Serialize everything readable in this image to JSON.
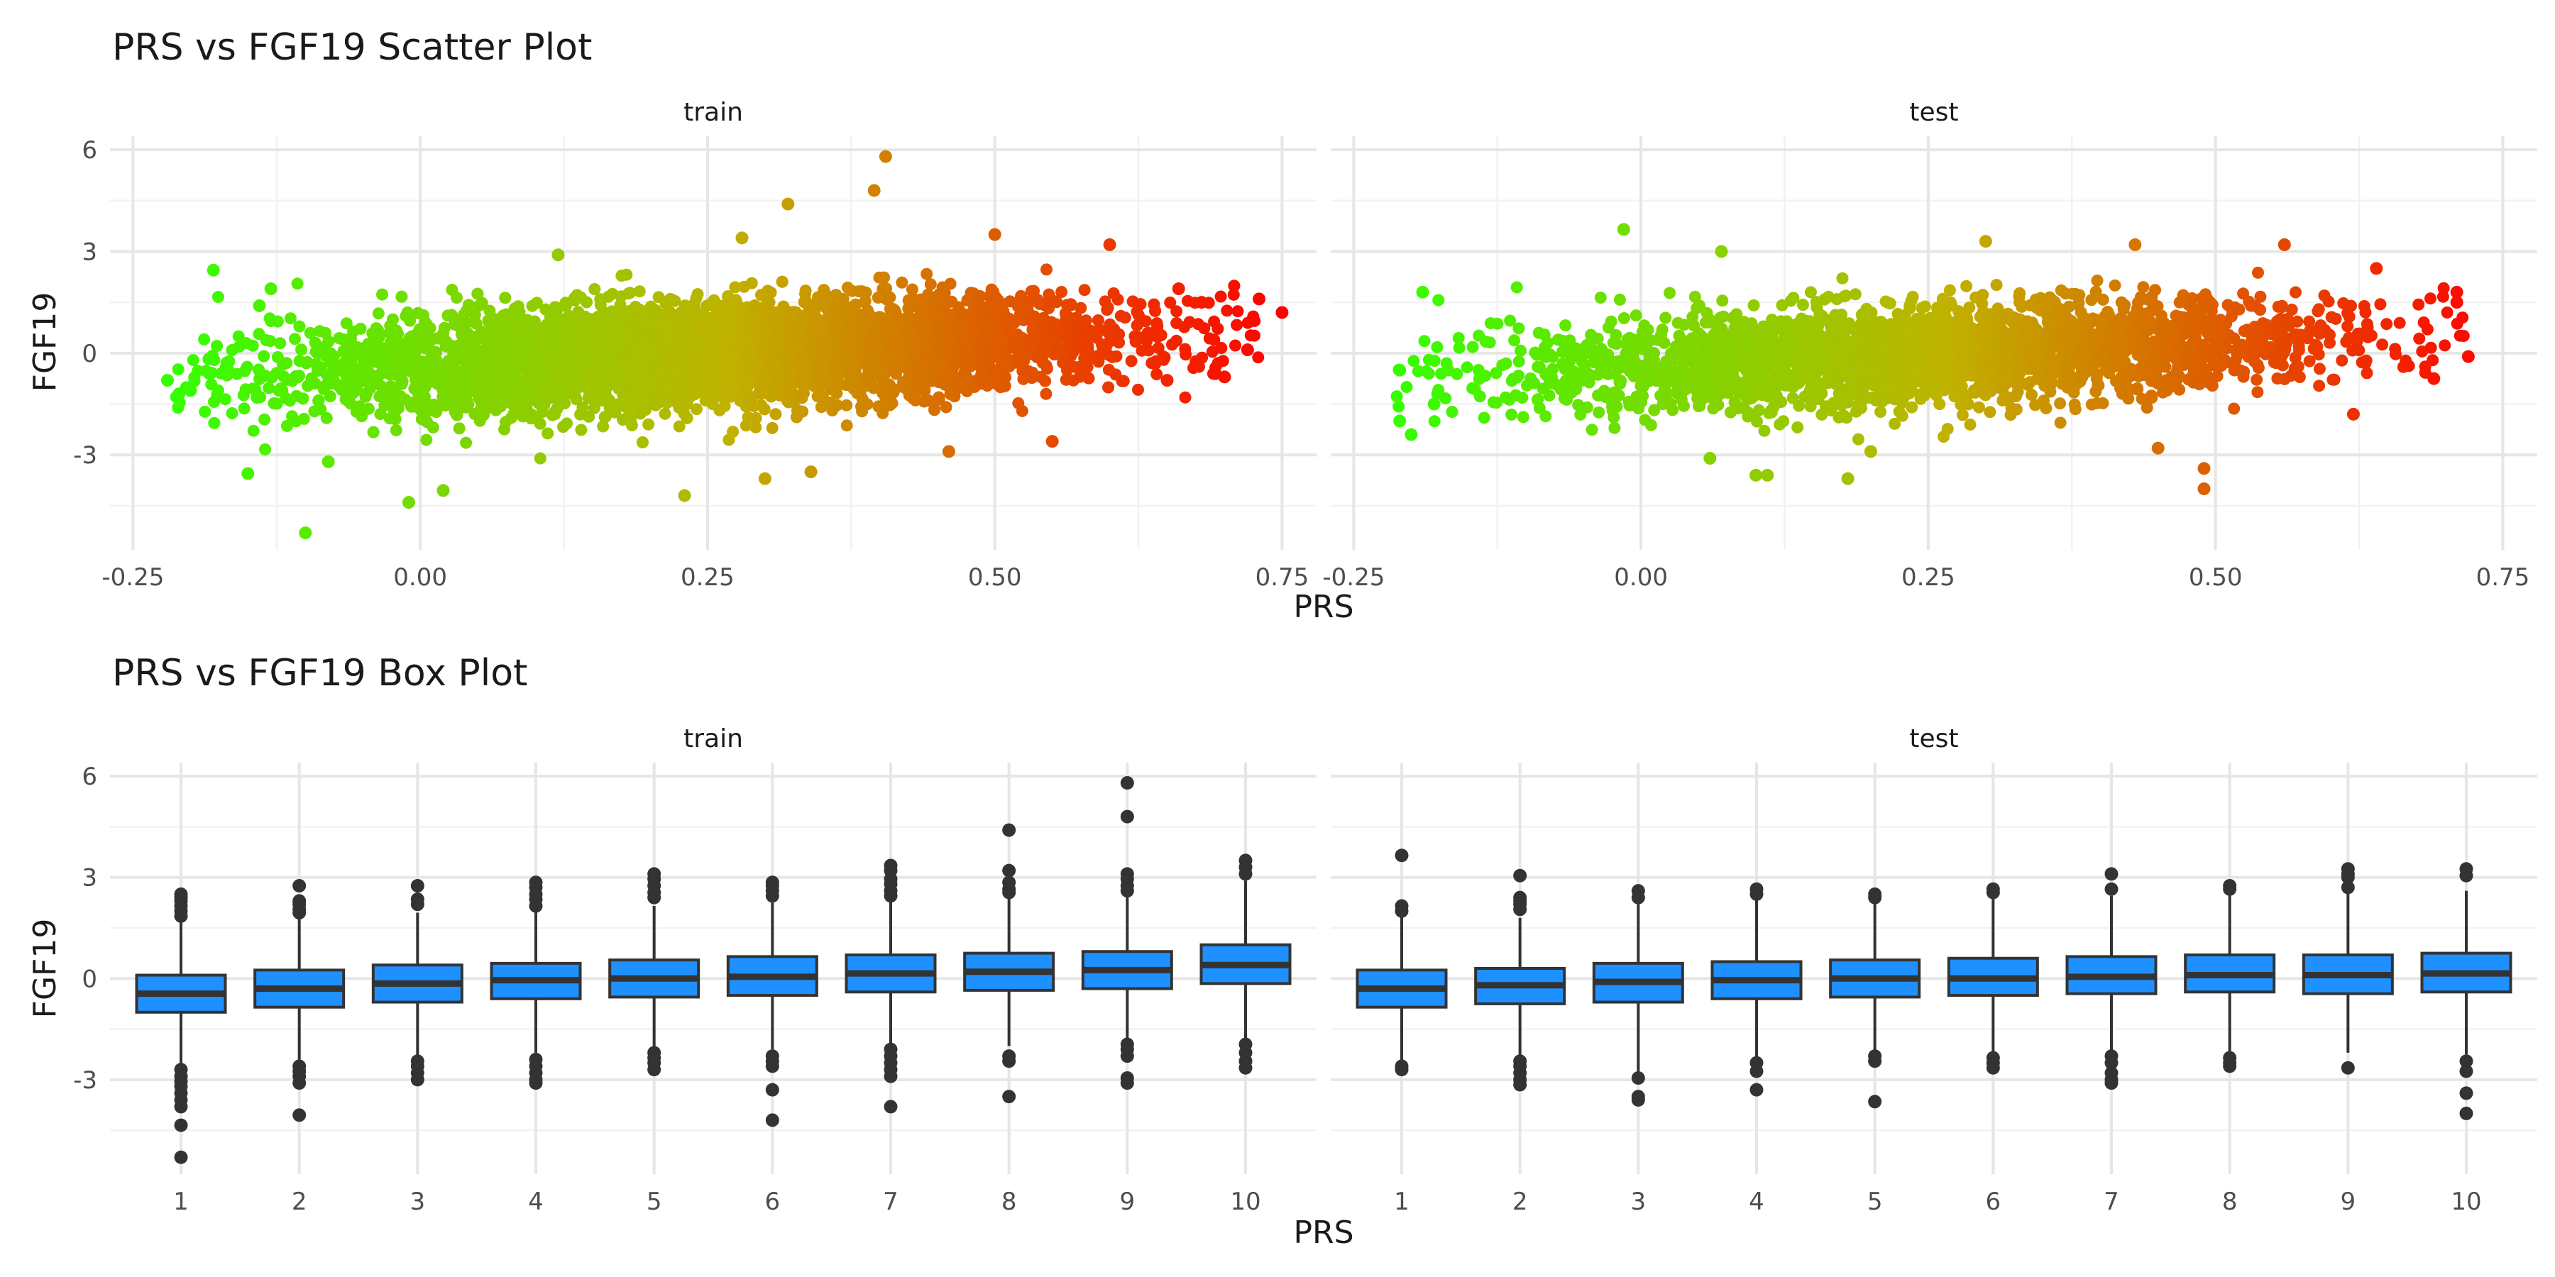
{
  "colors": {
    "low": "#33ff00",
    "mid": "#bfb300",
    "high": "#ff0000",
    "box_fill": "#1e90ff",
    "box_line": "#333333",
    "grid": "#e6e6e6"
  },
  "chart_data": [
    {
      "type": "scatter",
      "title": "PRS vs FGF19 Scatter Plot",
      "xlabel": "PRS",
      "ylabel": "FGF19",
      "facets": [
        "train",
        "test"
      ],
      "xlim": [
        -0.27,
        0.78
      ],
      "ylim": [
        -5.8,
        6.4
      ],
      "xticks": [
        -0.25,
        0.0,
        0.25,
        0.5,
        0.75
      ],
      "xtick_labels": [
        "-0.25",
        "0.00",
        "0.25",
        "0.50",
        "0.75"
      ],
      "yticks": [
        -3,
        0,
        3,
        6
      ],
      "ytick_labels": [
        "-3",
        "0",
        "3",
        "6"
      ],
      "color_by": "x",
      "grid": true,
      "legend": "none",
      "trend": {
        "intercept": -0.45,
        "slope": 1.6
      },
      "cloud": {
        "train": {
          "x_range": [
            -0.22,
            0.73
          ],
          "n_points": 4500,
          "spread": 0.75
        },
        "test": {
          "x_range": [
            -0.22,
            0.72
          ],
          "n_points": 2600,
          "spread": 0.72
        }
      },
      "series": [
        {
          "name": "train",
          "points": [
            [
              0.405,
              5.8
            ],
            [
              0.395,
              4.8
            ],
            [
              0.32,
              4.4
            ],
            [
              0.5,
              3.5
            ],
            [
              -0.18,
              2.45
            ],
            [
              0.75,
              1.2
            ],
            [
              0.73,
              1.6
            ],
            [
              0.72,
              0.1
            ],
            [
              0.7,
              -0.7
            ],
            [
              -0.1,
              -5.3
            ],
            [
              -0.01,
              -4.4
            ],
            [
              0.02,
              -4.05
            ],
            [
              0.23,
              -4.2
            ],
            [
              0.3,
              -3.7
            ],
            [
              0.34,
              -3.5
            ],
            [
              -0.15,
              -3.55
            ],
            [
              -0.08,
              -3.2
            ],
            [
              -0.22,
              -0.8
            ],
            [
              -0.2,
              -1.1
            ],
            [
              -0.21,
              -1.2
            ],
            [
              0.65,
              -0.8
            ],
            [
              0.66,
              1.9
            ],
            [
              0.68,
              1.5
            ],
            [
              0.6,
              3.2
            ],
            [
              0.28,
              3.4
            ],
            [
              0.12,
              2.9
            ],
            [
              -0.13,
              1.9
            ],
            [
              -0.14,
              1.4
            ],
            [
              0.46,
              -2.9
            ],
            [
              0.55,
              -2.6
            ]
          ]
        },
        {
          "name": "test",
          "points": [
            [
              -0.015,
              3.65
            ],
            [
              0.07,
              3.0
            ],
            [
              0.56,
              3.2
            ],
            [
              0.71,
              1.8
            ],
            [
              0.71,
              1.5
            ],
            [
              0.72,
              -0.1
            ],
            [
              0.69,
              -0.75
            ],
            [
              0.49,
              -3.4
            ],
            [
              0.49,
              -4.0
            ],
            [
              -0.21,
              -0.5
            ],
            [
              -0.21,
              -2.0
            ],
            [
              -0.2,
              -2.4
            ],
            [
              0.1,
              -3.6
            ],
            [
              0.11,
              -3.6
            ],
            [
              0.18,
              -3.7
            ],
            [
              0.06,
              -3.1
            ],
            [
              -0.19,
              1.8
            ],
            [
              0.64,
              2.5
            ],
            [
              0.62,
              -1.8
            ],
            [
              0.3,
              3.3
            ],
            [
              0.43,
              3.2
            ],
            [
              0.45,
              -2.8
            ],
            [
              -0.18,
              -1.5
            ],
            [
              0.2,
              -2.9
            ]
          ]
        }
      ]
    },
    {
      "type": "box",
      "title": "PRS vs FGF19 Box Plot",
      "xlabel": "PRS",
      "ylabel": "FGF19",
      "facets": [
        "train",
        "test"
      ],
      "categories": [
        "1",
        "2",
        "3",
        "4",
        "5",
        "6",
        "7",
        "8",
        "9",
        "10"
      ],
      "ylim": [
        -5.8,
        6.4
      ],
      "yticks": [
        -3,
        0,
        3,
        6
      ],
      "ytick_labels": [
        "-3",
        "0",
        "3",
        "6"
      ],
      "grid": true,
      "series": [
        {
          "name": "train",
          "boxes": [
            {
              "q1": -1.0,
              "median": -0.45,
              "q3": 0.1,
              "wlo": -2.6,
              "whi": 1.75,
              "outliers": [
                2.5,
                2.4,
                2.3,
                2.15,
                2.0,
                1.85,
                -2.7,
                -2.9,
                -3.05,
                -3.2,
                -3.4,
                -3.6,
                -3.8,
                -4.35,
                -5.3
              ]
            },
            {
              "q1": -0.85,
              "median": -0.3,
              "q3": 0.25,
              "wlo": -2.4,
              "whi": 1.8,
              "outliers": [
                2.75,
                2.3,
                2.2,
                2.05,
                1.95,
                -2.6,
                -2.75,
                -2.9,
                -3.1,
                -4.05
              ]
            },
            {
              "q1": -0.7,
              "median": -0.15,
              "q3": 0.4,
              "wlo": -2.3,
              "whi": 1.95,
              "outliers": [
                2.75,
                2.35,
                2.2,
                -2.45,
                -2.6,
                -2.8,
                -3.0
              ]
            },
            {
              "q1": -0.6,
              "median": -0.05,
              "q3": 0.45,
              "wlo": -2.2,
              "whi": 2.0,
              "outliers": [
                2.85,
                2.7,
                2.5,
                2.35,
                2.15,
                -2.4,
                -2.6,
                -2.8,
                -3.0,
                -3.1
              ]
            },
            {
              "q1": -0.55,
              "median": 0.0,
              "q3": 0.55,
              "wlo": -2.15,
              "whi": 2.15,
              "outliers": [
                3.1,
                2.95,
                2.75,
                2.55,
                2.4,
                -2.2,
                -2.35,
                -2.5,
                -2.7
              ]
            },
            {
              "q1": -0.5,
              "median": 0.05,
              "q3": 0.65,
              "wlo": -2.1,
              "whi": 2.25,
              "outliers": [
                2.85,
                2.75,
                2.6,
                2.45,
                -2.3,
                -2.45,
                -2.6,
                -3.3,
                -4.2
              ]
            },
            {
              "q1": -0.4,
              "median": 0.15,
              "q3": 0.7,
              "wlo": -2.05,
              "whi": 2.35,
              "outliers": [
                3.35,
                3.2,
                2.95,
                2.8,
                2.6,
                2.45,
                -2.1,
                -2.3,
                -2.5,
                -2.7,
                -2.9,
                -3.8
              ]
            },
            {
              "q1": -0.35,
              "median": 0.2,
              "q3": 0.75,
              "wlo": -2.0,
              "whi": 2.45,
              "outliers": [
                4.4,
                3.2,
                2.85,
                2.65,
                2.55,
                -2.3,
                -2.45,
                -3.5
              ]
            },
            {
              "q1": -0.3,
              "median": 0.25,
              "q3": 0.8,
              "wlo": -1.85,
              "whi": 2.5,
              "outliers": [
                5.8,
                4.8,
                3.1,
                2.95,
                2.75,
                2.6,
                -1.95,
                -2.1,
                -2.3,
                -2.95,
                -3.1
              ]
            },
            {
              "q1": -0.15,
              "median": 0.4,
              "q3": 1.0,
              "wlo": -1.85,
              "whi": 2.9,
              "outliers": [
                3.5,
                3.3,
                3.1,
                -1.95,
                -2.2,
                -2.45,
                -2.65
              ]
            }
          ]
        },
        {
          "name": "test",
          "boxes": [
            {
              "q1": -0.85,
              "median": -0.3,
              "q3": 0.25,
              "wlo": -2.5,
              "whi": 1.9,
              "outliers": [
                3.65,
                2.15,
                2.0,
                -2.6,
                -2.7
              ]
            },
            {
              "q1": -0.75,
              "median": -0.2,
              "q3": 0.3,
              "wlo": -2.3,
              "whi": 1.8,
              "outliers": [
                3.05,
                2.4,
                2.3,
                2.2,
                2.05,
                -2.45,
                -2.6,
                -2.8,
                -3.0,
                -3.15
              ]
            },
            {
              "q1": -0.7,
              "median": -0.1,
              "q3": 0.45,
              "wlo": -2.8,
              "whi": 2.2,
              "outliers": [
                2.6,
                2.4,
                -2.95,
                -3.5,
                -3.6
              ]
            },
            {
              "q1": -0.6,
              "median": -0.05,
              "q3": 0.5,
              "wlo": -2.4,
              "whi": 2.35,
              "outliers": [
                2.65,
                2.5,
                -2.5,
                -2.75,
                -3.3
              ]
            },
            {
              "q1": -0.55,
              "median": 0.0,
              "q3": 0.55,
              "wlo": -2.2,
              "whi": 2.3,
              "outliers": [
                2.5,
                2.4,
                -2.3,
                -2.45,
                -3.65
              ]
            },
            {
              "q1": -0.5,
              "median": 0.0,
              "q3": 0.6,
              "wlo": -2.2,
              "whi": 2.4,
              "outliers": [
                2.65,
                2.55,
                -2.35,
                -2.5,
                -2.65
              ]
            },
            {
              "q1": -0.45,
              "median": 0.05,
              "q3": 0.65,
              "wlo": -2.2,
              "whi": 2.45,
              "outliers": [
                3.1,
                2.65,
                -2.3,
                -2.5,
                -2.8,
                -3.0,
                -3.1
              ]
            },
            {
              "q1": -0.4,
              "median": 0.1,
              "q3": 0.7,
              "wlo": -2.2,
              "whi": 2.5,
              "outliers": [
                2.75,
                2.65,
                -2.35,
                -2.5,
                -2.6
              ]
            },
            {
              "q1": -0.45,
              "median": 0.1,
              "q3": 0.7,
              "wlo": -2.2,
              "whi": 2.55,
              "outliers": [
                3.25,
                3.1,
                3.0,
                2.7,
                -2.65
              ]
            },
            {
              "q1": -0.4,
              "median": 0.15,
              "q3": 0.75,
              "wlo": -2.25,
              "whi": 2.6,
              "outliers": [
                3.25,
                3.05,
                -2.45,
                -2.75,
                -3.4,
                -4.0
              ]
            }
          ]
        }
      ]
    }
  ]
}
